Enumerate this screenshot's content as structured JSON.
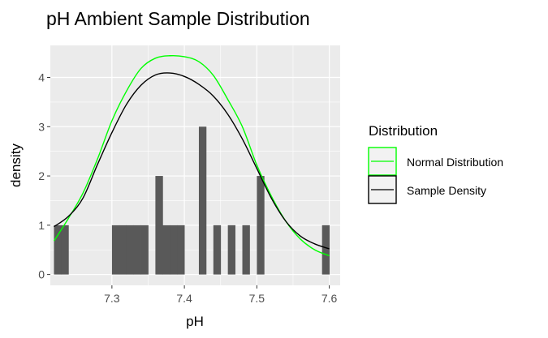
{
  "chart_data": {
    "type": "bar",
    "title": "pH Ambient Sample Distribution",
    "xlabel": "pH",
    "ylabel": "density",
    "xlim": [
      7.215,
      7.615
    ],
    "ylim": [
      -0.22,
      4.65
    ],
    "x_ticks": [
      7.3,
      7.4,
      7.5,
      7.6
    ],
    "y_ticks": [
      0,
      1,
      2,
      3,
      4
    ],
    "bin_width": 0.01,
    "bins": [
      {
        "x0": 7.22,
        "x1": 7.23,
        "density": 1
      },
      {
        "x0": 7.23,
        "x1": 7.24,
        "density": 1
      },
      {
        "x0": 7.3,
        "x1": 7.31,
        "density": 1
      },
      {
        "x0": 7.31,
        "x1": 7.32,
        "density": 1
      },
      {
        "x0": 7.32,
        "x1": 7.33,
        "density": 1
      },
      {
        "x0": 7.33,
        "x1": 7.34,
        "density": 1
      },
      {
        "x0": 7.34,
        "x1": 7.35,
        "density": 1
      },
      {
        "x0": 7.36,
        "x1": 7.37,
        "density": 2
      },
      {
        "x0": 7.37,
        "x1": 7.38,
        "density": 1
      },
      {
        "x0": 7.38,
        "x1": 7.39,
        "density": 1
      },
      {
        "x0": 7.39,
        "x1": 7.4,
        "density": 1
      },
      {
        "x0": 7.42,
        "x1": 7.43,
        "density": 3
      },
      {
        "x0": 7.44,
        "x1": 7.45,
        "density": 1
      },
      {
        "x0": 7.46,
        "x1": 7.47,
        "density": 1
      },
      {
        "x0": 7.48,
        "x1": 7.49,
        "density": 1
      },
      {
        "x0": 7.5,
        "x1": 7.51,
        "density": 2
      },
      {
        "x0": 7.59,
        "x1": 7.6,
        "density": 1
      }
    ],
    "series": [
      {
        "name": "Normal Distribution",
        "color": "#00ff00",
        "x": [
          7.22,
          7.24,
          7.26,
          7.28,
          7.3,
          7.32,
          7.34,
          7.36,
          7.38,
          7.4,
          7.42,
          7.44,
          7.46,
          7.48,
          7.5,
          7.52,
          7.54,
          7.56,
          7.58,
          7.6
        ],
        "y": [
          0.68,
          1.14,
          1.65,
          2.34,
          3.12,
          3.72,
          4.18,
          4.39,
          4.44,
          4.42,
          4.32,
          4.04,
          3.55,
          3.0,
          2.22,
          1.59,
          1.08,
          0.72,
          0.5,
          0.38
        ]
      },
      {
        "name": "Sample Density",
        "color": "#000000",
        "x": [
          7.22,
          7.24,
          7.26,
          7.28,
          7.3,
          7.32,
          7.34,
          7.36,
          7.38,
          7.4,
          7.42,
          7.44,
          7.46,
          7.48,
          7.5,
          7.52,
          7.54,
          7.56,
          7.58,
          7.6
        ],
        "y": [
          0.97,
          1.18,
          1.55,
          2.23,
          2.88,
          3.45,
          3.84,
          4.05,
          4.09,
          4.02,
          3.86,
          3.62,
          3.25,
          2.75,
          2.15,
          1.55,
          1.08,
          0.78,
          0.62,
          0.52
        ]
      }
    ],
    "legend": {
      "title": "Distribution",
      "position": "right",
      "entries": [
        "Normal Distribution",
        "Sample Density"
      ]
    },
    "bar_color": "#595959",
    "panel_background": "#ebebeb",
    "grid": true
  }
}
